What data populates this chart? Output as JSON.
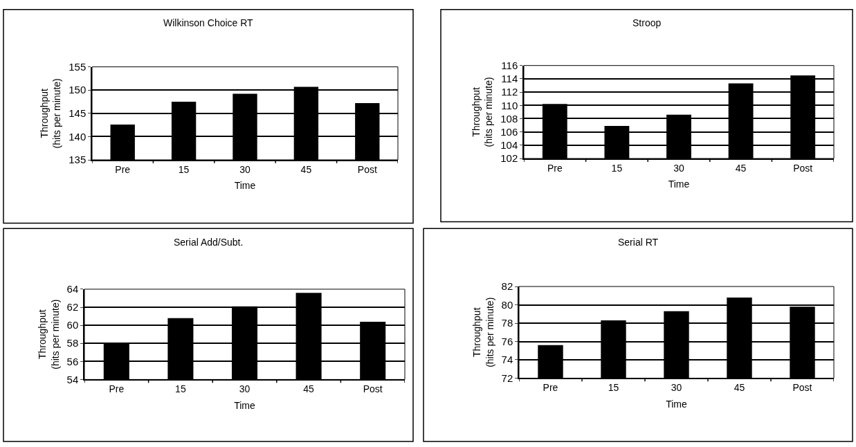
{
  "chart_data": [
    {
      "type": "bar",
      "title": "Wilkinson Choice RT",
      "xlabel": "Time",
      "ylabel": "Throughput\n(hits per minute)",
      "categories": [
        "Pre",
        "15",
        "30",
        "45",
        "Post"
      ],
      "values": [
        142.6,
        147.5,
        149.2,
        150.7,
        147.2
      ],
      "color": "#000000",
      "ylim": [
        135,
        155
      ],
      "yticks": [
        135,
        140,
        145,
        150,
        155
      ],
      "grid": "y"
    },
    {
      "type": "bar",
      "title": "Stroop",
      "xlabel": "Time",
      "ylabel": "Throughput\n(hits per minute)",
      "categories": [
        "Pre",
        "15",
        "30",
        "45",
        "Post"
      ],
      "values": [
        110.2,
        106.9,
        108.6,
        113.3,
        114.5
      ],
      "color": "#000000",
      "ylim": [
        102,
        116
      ],
      "yticks": [
        102,
        104,
        106,
        108,
        110,
        112,
        114,
        116
      ],
      "grid": "y"
    },
    {
      "type": "bar",
      "title": "Serial Add/Subt.",
      "xlabel": "Time",
      "ylabel": "Throughput\n(hits per minute)",
      "categories": [
        "Pre",
        "15",
        "30",
        "45",
        "Post"
      ],
      "values": [
        58.1,
        60.8,
        62.1,
        63.6,
        60.4
      ],
      "color": "#000000",
      "ylim": [
        54,
        64
      ],
      "yticks": [
        54,
        56,
        58,
        60,
        62,
        64
      ],
      "grid": "y"
    },
    {
      "type": "bar",
      "title": "Serial RT",
      "xlabel": "Time",
      "ylabel": "Throughput\n(hits per minute)",
      "categories": [
        "Pre",
        "15",
        "30",
        "45",
        "Post"
      ],
      "values": [
        75.6,
        78.3,
        79.3,
        80.8,
        79.8
      ],
      "color": "#000000",
      "ylim": [
        72,
        82
      ],
      "yticks": [
        72,
        74,
        76,
        78,
        80,
        82
      ],
      "grid": "y"
    }
  ]
}
